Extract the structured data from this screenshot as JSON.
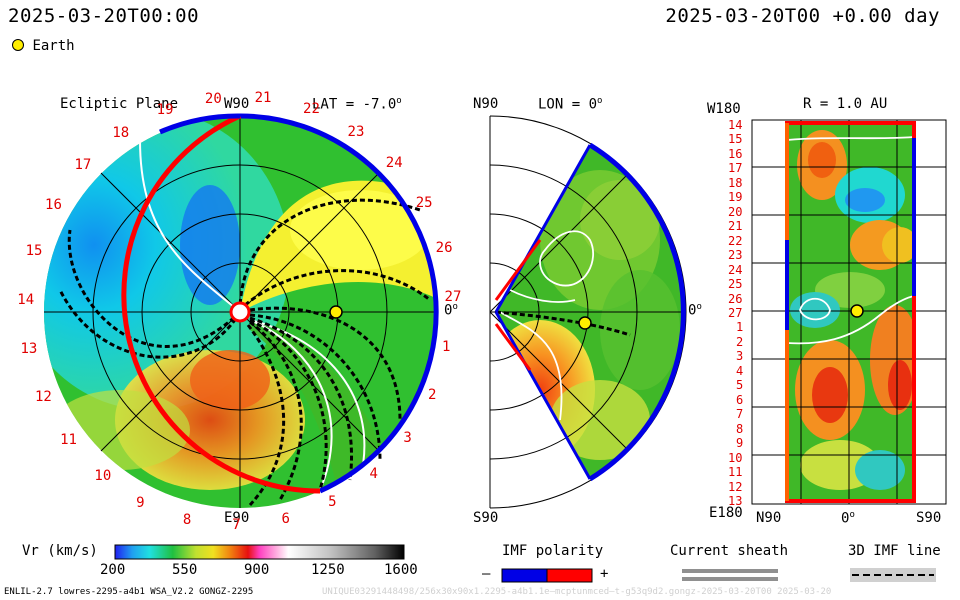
{
  "header": {
    "left_timestamp": "2025-03-20T00:00",
    "right_timestamp": "2025-03-20T00 +0.00 day",
    "legend_earth": "Earth"
  },
  "ecliptic_panel": {
    "title": "Ecliptic Plane",
    "lat_label": "LAT = -7.0",
    "w90_label": "W90",
    "e90_label": "E90",
    "zero_label": "0",
    "carrington_labels": [
      "20",
      "21",
      "22",
      "23",
      "24",
      "25",
      "26",
      "27",
      "1",
      "2",
      "3",
      "4",
      "5",
      "6",
      "7",
      "8",
      "9",
      "10",
      "11",
      "12",
      "13",
      "14",
      "15",
      "16",
      "17",
      "18",
      "19"
    ]
  },
  "meridional_panel": {
    "n90_label": "N90",
    "s90_label": "S90",
    "lon_label": "LON = 0",
    "zero_label": "0"
  },
  "map_panel": {
    "title": "R = 1.0 AU",
    "w180_label": "W180",
    "e180_label": "E180",
    "x_labels": [
      "N90",
      "0",
      "S90"
    ],
    "y_labels": [
      "14",
      "15",
      "16",
      "17",
      "18",
      "19",
      "20",
      "21",
      "22",
      "23",
      "24",
      "25",
      "26",
      "27",
      "1",
      "2",
      "3",
      "4",
      "5",
      "6",
      "7",
      "8",
      "9",
      "10",
      "11",
      "12",
      "13"
    ]
  },
  "colorbar": {
    "label": "Vr (km/s)",
    "ticks": [
      "200",
      "550",
      "900",
      "1250",
      "1600"
    ]
  },
  "legend": {
    "imf_title": "IMF polarity",
    "imf_minus": "–",
    "imf_plus": "+",
    "sheath_title": "Current sheath",
    "imf3d_title": "3D IMF line"
  },
  "footer": {
    "model_info": "ENLIL-2.7 lowres-2295-a4b1 WSA_V2.2 GONGZ-2295",
    "watermark": "UNIQUE03291448498/256x30x90x1.2295-a4b1.1e—mcptunmced—t-g53q9d2.gongz-2025-03-20T00   2025-03-20"
  },
  "colors": {
    "imf_negative": "#0000e6",
    "imf_positive": "#ff0000",
    "earth": "#ffee00",
    "label_red": "#e00000"
  }
}
